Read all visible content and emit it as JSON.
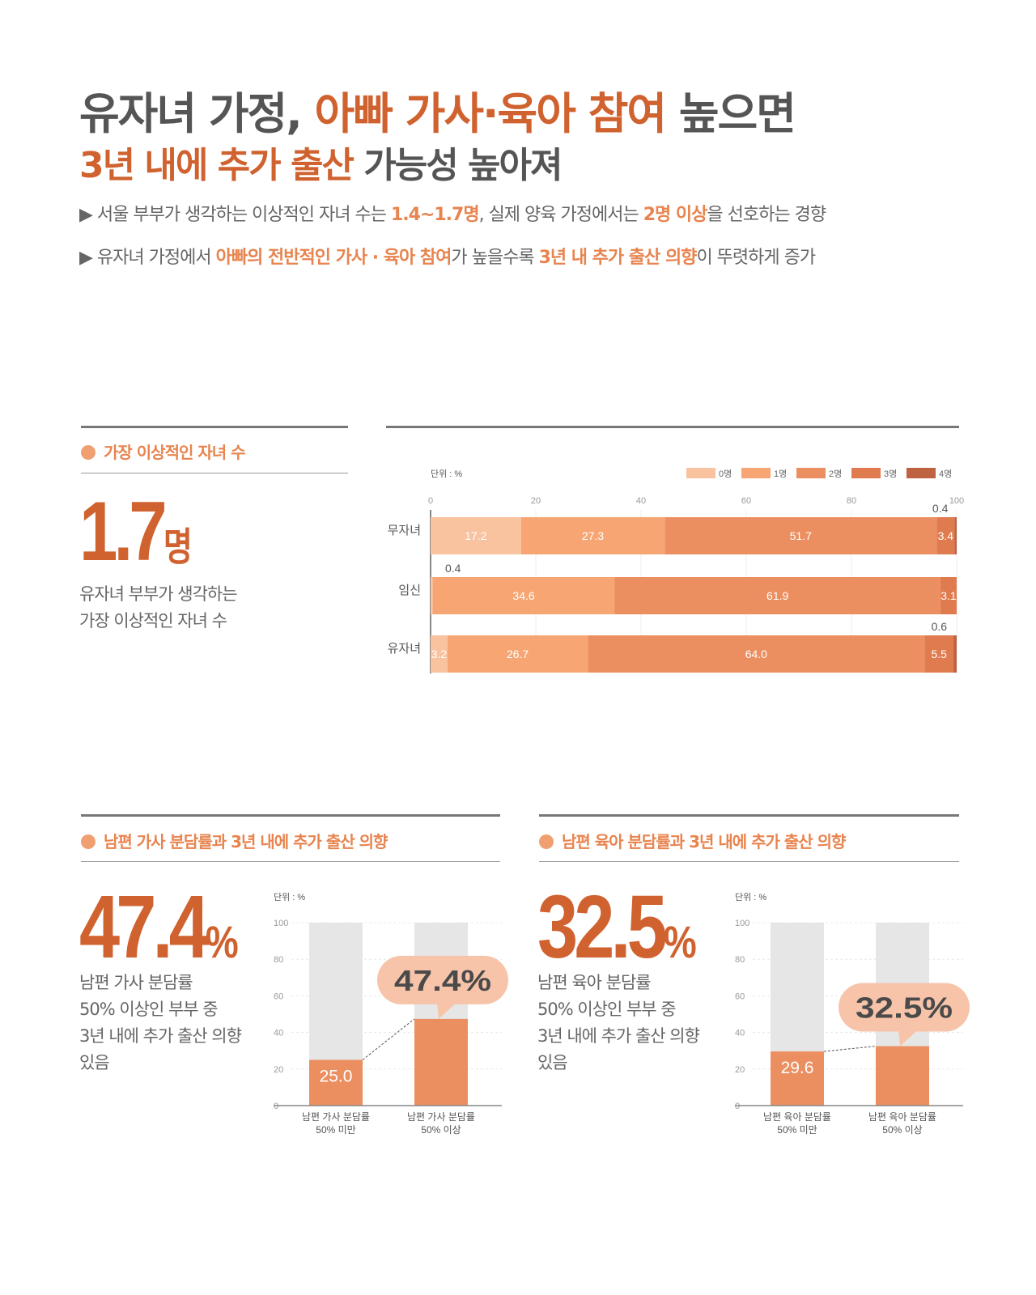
{
  "header": {
    "title1_a": "유자녀 가정, ",
    "title1_b": "아빠 가사·육아 참여",
    "title1_c": " 높으면",
    "title2_a": "3년 내에 추가 출산",
    "title2_b": " 가능성 높아져",
    "bullet1": [
      "▶ 서울 부부가 생각하는 이상적인 자녀 수는 ",
      "1.4~1.7명",
      ", 실제 양육 가정에서는 ",
      "2명 이상",
      "을 선호하는 경향"
    ],
    "bullet2": [
      "▶ 유자녀 가정에서 ",
      "아빠의 전반적인 가사 · 육아 참여",
      "가 높을수록 ",
      "3년 내 추가 출산 의향",
      "이 뚜렷하게 증가"
    ]
  },
  "section1": {
    "title": "가장 이상적인 자녀 수",
    "value": "1.7",
    "unit": "명",
    "desc1": "유자녀 부부가 생각하는",
    "desc2": "가장 이상적인 자녀 수"
  },
  "section2": {
    "title": "남편 가사 분담률과 3년 내에 추가 출산 의향",
    "value": "47.4",
    "unit": "%",
    "desc": [
      "남편 가사 분담률",
      "50% 이상인 부부 중",
      "3년 내에 추가 출산 의향",
      "있음"
    ]
  },
  "section3": {
    "title": "남편 육아 분담률과 3년 내에 추가 출산 의향",
    "value": "32.5",
    "unit": "%",
    "desc": [
      "남편 육아 분담률",
      "50% 이상인 부부 중",
      "3년 내에 추가 출산 의향",
      "있음"
    ]
  },
  "chart_data": [
    {
      "type": "bar",
      "orientation": "horizontal",
      "stacked": true,
      "unit_label": "단위 : %",
      "xlim": [
        0,
        100
      ],
      "xticks": [
        0,
        20,
        40,
        60,
        80,
        100
      ],
      "grid": true,
      "legend": "top-right",
      "categories": [
        "무자녀",
        "임신",
        "유자녀"
      ],
      "series": [
        {
          "name": "0명",
          "color": "#f9c3a0",
          "values": [
            17.2,
            0.4,
            3.2
          ]
        },
        {
          "name": "1명",
          "color": "#f7a673",
          "values": [
            27.3,
            34.6,
            26.7
          ]
        },
        {
          "name": "2명",
          "color": "#ec8f60",
          "values": [
            51.7,
            61.9,
            64.0
          ]
        },
        {
          "name": "3명",
          "color": "#e07b4f",
          "values": [
            3.4,
            3.1,
            5.5
          ]
        },
        {
          "name": "4명",
          "color": "#bf6242",
          "values": [
            0.4,
            0,
            0.6
          ]
        }
      ]
    },
    {
      "type": "bar",
      "unit_label": "단위 : %",
      "ylim": [
        0,
        100
      ],
      "yticks": [
        0,
        20,
        40,
        60,
        80,
        100
      ],
      "categories": [
        [
          "남편 가사 분담률",
          "50% 미만"
        ],
        [
          "남편 가사 분담률",
          "50% 이상"
        ]
      ],
      "values": [
        25.0,
        47.4
      ],
      "labels": [
        "25.0",
        "47.4%"
      ]
    },
    {
      "type": "bar",
      "unit_label": "단위 : %",
      "ylim": [
        0,
        100
      ],
      "yticks": [
        0,
        20,
        40,
        60,
        80,
        100
      ],
      "categories": [
        [
          "남편 육아 분담률",
          "50% 미만"
        ],
        [
          "남편 육아 분담률",
          "50% 이상"
        ]
      ],
      "values": [
        29.6,
        32.5
      ],
      "labels": [
        "29.6",
        "32.5%"
      ]
    }
  ],
  "colors": {
    "accent": "#d0622f",
    "orange": "#e8844f",
    "bubble": "#f7c4aa",
    "track": "#e6e6e6",
    "bar": "#ec8f60"
  }
}
